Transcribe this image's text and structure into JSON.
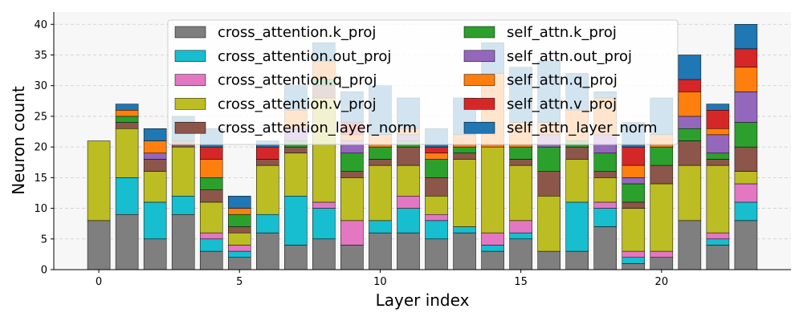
{
  "chart_data": {
    "type": "bar",
    "stacked": true,
    "xlabel": "Layer index",
    "ylabel": "Neuron count",
    "x": [
      0,
      1,
      2,
      3,
      4,
      5,
      6,
      7,
      8,
      9,
      10,
      11,
      12,
      13,
      14,
      15,
      16,
      17,
      18,
      19,
      20,
      21,
      22,
      23
    ],
    "xlim": [
      -1.6,
      24.6
    ],
    "ylim": [
      0,
      42
    ],
    "xticks": [
      0,
      5,
      10,
      15,
      20
    ],
    "yticks": [
      0,
      5,
      10,
      15,
      20,
      25,
      30,
      35,
      40
    ],
    "grid": "y-dashed",
    "legend": "top-center",
    "series": [
      {
        "name": "cross_attention.k_proj",
        "color": "#7f7f7f",
        "values": [
          8,
          9,
          5,
          9,
          3,
          2,
          6,
          4,
          5,
          4,
          6,
          6,
          5,
          6,
          3,
          5,
          3,
          3,
          7,
          1,
          2,
          8,
          4,
          8
        ]
      },
      {
        "name": "cross_attention.out_proj",
        "color": "#17becf",
        "values": [
          0,
          6,
          6,
          3,
          2,
          1,
          3,
          8,
          5,
          0,
          2,
          4,
          3,
          1,
          1,
          1,
          0,
          8,
          3,
          1,
          0,
          0,
          1,
          3
        ]
      },
      {
        "name": "cross_attention.q_proj",
        "color": "#e377c2",
        "values": [
          0,
          0,
          0,
          0,
          1,
          1,
          0,
          0,
          1,
          4,
          0,
          2,
          1,
          0,
          2,
          2,
          0,
          0,
          1,
          1,
          1,
          0,
          1,
          3
        ]
      },
      {
        "name": "cross_attention.v_proj",
        "color": "#bcbd22",
        "values": [
          13,
          8,
          5,
          8,
          5,
          2,
          8,
          7,
          17,
          7,
          9,
          5,
          3,
          11,
          14,
          9,
          9,
          7,
          4,
          7,
          11,
          9,
          11,
          2
        ]
      },
      {
        "name": "cross_attention_layer_norm",
        "color": "#8c564b",
        "values": [
          0,
          1,
          2,
          1,
          2,
          1,
          1,
          1,
          2,
          1,
          1,
          3,
          3,
          1,
          0,
          1,
          4,
          2,
          1,
          1,
          3,
          4,
          1,
          4
        ]
      },
      {
        "name": "self_attn.k_proj",
        "color": "#2ca02c",
        "values": [
          0,
          1,
          0,
          0,
          2,
          2,
          0,
          1,
          1,
          3,
          2,
          1,
          3,
          1,
          0,
          2,
          4,
          1,
          3,
          3,
          3,
          2,
          1,
          4
        ]
      },
      {
        "name": "self_attn.out_proj",
        "color": "#9467bd",
        "values": [
          0,
          0,
          1,
          0,
          0,
          0,
          0,
          2,
          0,
          2,
          0,
          1,
          0,
          0,
          0,
          0,
          2,
          0,
          3,
          1,
          0,
          2,
          3,
          5
        ]
      },
      {
        "name": "self_attn.q_proj",
        "color": "#ff7f0e",
        "values": [
          0,
          1,
          2,
          0,
          3,
          1,
          0,
          3,
          3,
          1,
          2,
          1,
          1,
          2,
          12,
          4,
          2,
          5,
          6,
          2,
          2,
          4,
          1,
          4
        ]
      },
      {
        "name": "self_attn.v_proj",
        "color": "#d62728",
        "values": [
          0,
          0,
          0,
          0,
          2,
          0,
          2,
          0,
          0,
          2,
          0,
          0,
          1,
          0,
          0,
          0,
          0,
          0,
          0,
          3,
          0,
          2,
          3,
          3
        ]
      },
      {
        "name": "self_attn_layer_norm",
        "color": "#1f77b4",
        "values": [
          0,
          1,
          2,
          4,
          3,
          2,
          1,
          4,
          3,
          5,
          8,
          5,
          3,
          6,
          5,
          9,
          10,
          6,
          1,
          4,
          6,
          4,
          1,
          4
        ]
      }
    ]
  }
}
